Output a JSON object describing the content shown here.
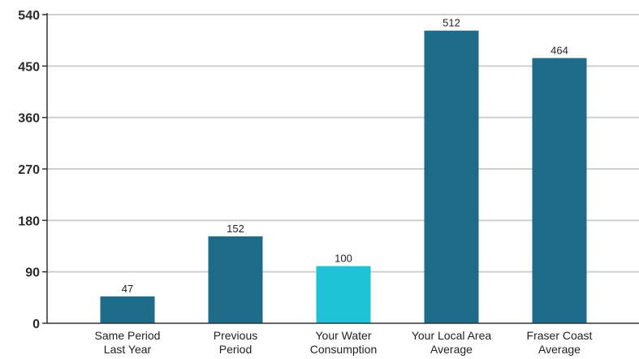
{
  "chart_data": {
    "type": "bar",
    "categories": [
      [
        "Same Period",
        "Last Year"
      ],
      [
        "Previous",
        "Period"
      ],
      [
        "Your Water",
        "Consumption"
      ],
      [
        "Your Local Area",
        "Average"
      ],
      [
        "Fraser Coast",
        "Average"
      ]
    ],
    "values": [
      47,
      152,
      100,
      512,
      464
    ],
    "data_labels": [
      "47",
      "152",
      "100",
      "512",
      "464"
    ],
    "bar_colors": [
      "#1d6b86",
      "#1d6b86",
      "#1fc3d6",
      "#1d6b86",
      "#1d6b86"
    ],
    "yticks": [
      0,
      90,
      180,
      270,
      360,
      450,
      540
    ],
    "ylim": [
      0,
      540
    ],
    "grid": true,
    "legend": "none"
  }
}
